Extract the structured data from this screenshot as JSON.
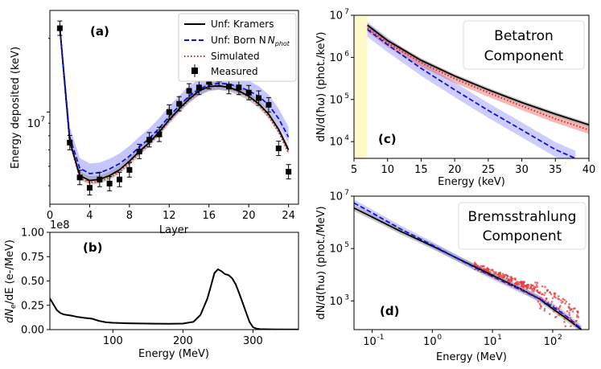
{
  "chart_data": [
    {
      "id": "a",
      "type": "line",
      "panel_label": "(a)",
      "xlabel": "Layer",
      "ylabel": "Energy deposited (keV)",
      "xlim": [
        0,
        25
      ],
      "ylim_log": [
        4200000.0,
        26000000.0
      ],
      "yscale": "log",
      "xticks": [
        0,
        4,
        8,
        12,
        16,
        20,
        24
      ],
      "xtick_labels": [
        "0",
        "4",
        "8",
        "12",
        "16",
        "20",
        "24"
      ],
      "ytick_label": "10",
      "ytick_exp": "7",
      "legend": [
        "Unf: Kramers",
        "Unf: Born N",
        "Simulated",
        "Measured"
      ],
      "legend_sub": "phot",
      "measured_x": [
        1,
        2,
        3,
        4,
        5,
        6,
        7,
        8,
        9,
        10,
        11,
        12,
        13,
        14,
        15,
        16,
        17,
        18,
        19,
        20,
        21,
        22,
        23,
        24
      ],
      "measured_y": [
        22000000.0,
        7500000.0,
        5400000.0,
        4900000.0,
        5300000.0,
        5100000.0,
        5300000.0,
        5800000.0,
        6900000.0,
        7700000.0,
        8100000.0,
        10000000.0,
        10800000.0,
        12200000.0,
        12600000.0,
        13300000.0,
        13600000.0,
        12700000.0,
        12600000.0,
        12000000.0,
        11400000.0,
        10700000.0,
        7100000.0,
        5700000.0
      ],
      "series": [
        {
          "name": "Unf: Kramers",
          "x": [
            1,
            2,
            3,
            4,
            5,
            6,
            7,
            8,
            9,
            10,
            11,
            12,
            13,
            14,
            15,
            16,
            17,
            18,
            19,
            20,
            21,
            22,
            23,
            24
          ],
          "y": [
            22000000.0,
            7600000.0,
            5500000.0,
            5250000.0,
            5300000.0,
            5500000.0,
            5800000.0,
            6300000.0,
            6900000.0,
            7500000.0,
            8300000.0,
            9300000.0,
            10300000.0,
            11300000.0,
            12200000.0,
            12700000.0,
            12800000.0,
            12600000.0,
            12200000.0,
            11600000.0,
            10800000.0,
            9800000.0,
            8500000.0,
            7000000.0
          ]
        },
        {
          "name": "Unf: Born N_phot",
          "x": [
            1,
            2,
            3,
            4,
            5,
            6,
            7,
            8,
            9,
            10,
            11,
            12,
            13,
            14,
            15,
            16,
            17,
            18,
            19,
            20,
            21,
            22,
            23,
            24
          ],
          "y": [
            22000000.0,
            7900000.0,
            5900000.0,
            5600000.0,
            5650000.0,
            5850000.0,
            6150000.0,
            6600000.0,
            7200000.0,
            7800000.0,
            8600000.0,
            9600000.0,
            10600000.0,
            11600000.0,
            12400000.0,
            12900000.0,
            13100000.0,
            13000000.0,
            12700000.0,
            12200000.0,
            11600000.0,
            10700000.0,
            9400000.0,
            7900000.0
          ]
        },
        {
          "name": "Simulated",
          "x": [
            1,
            2,
            3,
            4,
            5,
            6,
            7,
            8,
            9,
            10,
            11,
            12,
            13,
            14,
            15,
            16,
            17,
            18,
            19,
            20,
            21,
            22,
            23,
            24
          ],
          "y": [
            22000000.0,
            7500000.0,
            5400000.0,
            5150000.0,
            5200000.0,
            5400000.0,
            5700000.0,
            6200000.0,
            6800000.0,
            7400000.0,
            8200000.0,
            9200000.0,
            10200000.0,
            11200000.0,
            12100000.0,
            12700000.0,
            12800000.0,
            12600000.0,
            12100000.0,
            11500000.0,
            10700000.0,
            9600000.0,
            8300000.0,
            6800000.0
          ]
        }
      ]
    },
    {
      "id": "b",
      "type": "line",
      "panel_label": "(b)",
      "xlabel": "Energy (MeV)",
      "ylabel": "dN",
      "ylabel_sub": "e",
      "ylabel_rest": "/dE (e-/MeV)",
      "xlim": [
        10,
        365
      ],
      "ylim": [
        0,
        100000000.0
      ],
      "offset_label": "1e8",
      "xticks": [
        100,
        200,
        300
      ],
      "xtick_labels": [
        "100",
        "200",
        "300"
      ],
      "yticks": [
        0,
        25000000.0,
        50000000.0,
        75000000.0,
        100000000.0
      ],
      "ytick_labels": [
        "0.00",
        "0.25",
        "0.50",
        "0.75",
        "1.00"
      ],
      "series": [
        {
          "name": "spectrum",
          "x": [
            10,
            15,
            20,
            25,
            30,
            40,
            50,
            60,
            70,
            80,
            90,
            100,
            120,
            140,
            160,
            180,
            200,
            215,
            225,
            235,
            240,
            245,
            250,
            255,
            260,
            265,
            270,
            275,
            280,
            285,
            290,
            295,
            300,
            305,
            310,
            330,
            365
          ],
          "y": [
            32000000.0,
            26000000.0,
            20000000.0,
            17000000.0,
            15500000.0,
            14500000.0,
            13000000.0,
            12000000.0,
            11200000.0,
            9000000.0,
            7500000.0,
            7000000.0,
            6500000.0,
            6300000.0,
            6100000.0,
            6000000.0,
            6200000.0,
            8000000.0,
            15000000.0,
            32000000.0,
            45000000.0,
            58000000.0,
            62000000.0,
            60000000.0,
            57000000.0,
            56000000.0,
            53000000.0,
            47000000.0,
            38000000.0,
            28000000.0,
            18000000.0,
            8000000.0,
            2500000.0,
            1000000.0,
            500000.0,
            200000.0,
            100000.0
          ]
        }
      ]
    },
    {
      "id": "c",
      "type": "line",
      "panel_label": "(c)",
      "title_box": [
        "Betatron",
        "Component"
      ],
      "xlabel": "Energy (keV)",
      "ylabel": "dN/d(ħω) (phot./keV)",
      "xlim": [
        5,
        40
      ],
      "ylim_log": [
        4000.0,
        10000000.0
      ],
      "yscale": "log",
      "xticks": [
        5,
        10,
        15,
        20,
        25,
        30,
        35,
        40
      ],
      "xtick_labels": [
        "5",
        "10",
        "15",
        "20",
        "25",
        "30",
        "35",
        "40"
      ],
      "yticks_exp": [
        "4",
        "5",
        "6",
        "7"
      ],
      "shaded_region": [
        5,
        7
      ],
      "series": [
        {
          "name": "Unf: Kramers",
          "x": [
            7,
            10,
            15,
            20,
            25,
            30,
            35,
            40
          ],
          "y": [
            5800000.0,
            2500000.0,
            850000.0,
            360000.0,
            170000.0,
            85000.0,
            45000.0,
            25000.0
          ]
        },
        {
          "name": "Unf: Born N_phot",
          "x": [
            7,
            10,
            15,
            20,
            25,
            30,
            35,
            38
          ],
          "y": [
            4600000.0,
            2000000.0,
            550000.0,
            170000.0,
            55000.0,
            19000.0,
            6500.0,
            4000.0
          ]
        },
        {
          "name": "Simulated",
          "x": [
            7,
            10,
            15,
            20,
            25,
            30,
            35,
            40
          ],
          "y": [
            5000000.0,
            2200000.0,
            750000.0,
            310000.0,
            145000.0,
            70000.0,
            35000.0,
            19000.0
          ]
        }
      ]
    },
    {
      "id": "d",
      "type": "line",
      "panel_label": "(d)",
      "title_box": [
        "Bremsstrahlung",
        "Component"
      ],
      "xlabel": "Energy (MeV)",
      "ylabel": "dN/d(ħω) (phot./MeV)",
      "xscale": "log",
      "yscale": "log",
      "xlim_log": [
        0.05,
        400
      ],
      "ylim_log": [
        80,
        10000000.0
      ],
      "xticks_exp": [
        "-1",
        "0",
        "1",
        "2"
      ],
      "yticks_exp": [
        "3",
        "5",
        "7"
      ],
      "series": [
        {
          "name": "Unf: Kramers",
          "x": [
            0.05,
            0.1,
            0.3,
            1,
            3,
            10,
            30,
            60,
            100,
            150,
            200,
            250,
            300
          ],
          "y": [
            3500000.0,
            1600000.0,
            450000.0,
            125000.0,
            36000.0,
            9500.0,
            2800.0,
            1200.0,
            500.0,
            260.0,
            160.0,
            110.0,
            80.0
          ]
        },
        {
          "name": "Unf: Born N_phot",
          "x": [
            0.05,
            0.1,
            0.3,
            1,
            3,
            10,
            30,
            60,
            100,
            150,
            200,
            250,
            300
          ],
          "y": [
            5500000.0,
            2300000.0,
            550000.0,
            135000.0,
            35000.0,
            8500.0,
            2600.0,
            1200.0,
            600.0,
            320.0,
            190.0,
            120.0,
            85.0
          ]
        },
        {
          "name": "Simulated",
          "x": [
            5,
            10,
            20,
            30,
            50,
            70,
            100,
            130,
            160,
            200,
            250
          ],
          "y": [
            16000.0,
            8500.0,
            4300.0,
            2800.0,
            1600.0,
            1100.0,
            700.0,
            460.0,
            300.0,
            180.0,
            110.0
          ]
        }
      ]
    }
  ]
}
